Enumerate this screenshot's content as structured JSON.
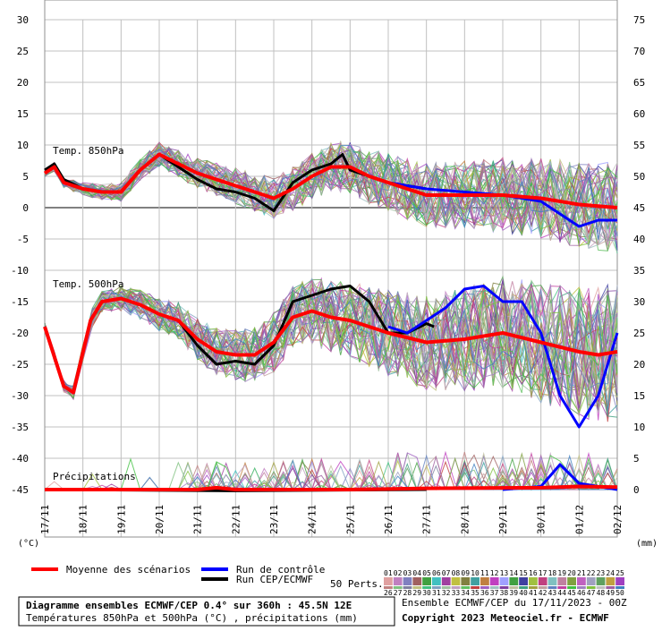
{
  "chart_data": {
    "type": "line",
    "left_unit_label": "(°C)",
    "right_unit_label": "(mm)",
    "x_categories": [
      "17/11",
      "18/11",
      "19/11",
      "20/11",
      "21/11",
      "22/11",
      "23/11",
      "24/11",
      "25/11",
      "26/11",
      "27/11",
      "28/11",
      "29/11",
      "30/11",
      "01/12",
      "02/12"
    ],
    "left_axis": {
      "range": [
        -45,
        30
      ],
      "ticks": [
        30,
        25,
        20,
        15,
        10,
        5,
        0,
        -5,
        -10,
        -15,
        -20,
        -25,
        -30,
        -35,
        -40,
        -45
      ]
    },
    "right_axis": {
      "range": [
        0,
        75
      ],
      "ticks": [
        75,
        70,
        65,
        60,
        55,
        50,
        45,
        40,
        35,
        30,
        25,
        20,
        15,
        10,
        5,
        0
      ]
    },
    "grid": true,
    "panels": [
      {
        "label": "Temp. 850hPa"
      },
      {
        "label": "Temp. 500hPa"
      },
      {
        "label": "Précipitations"
      }
    ],
    "series": [
      {
        "name": "Moyenne des scénarios",
        "color": "#ff0000",
        "panels": {
          "t850": [
            [
              0,
              5.5
            ],
            [
              0.25,
              6.5
            ],
            [
              0.5,
              4
            ],
            [
              1,
              3
            ],
            [
              1.5,
              2.5
            ],
            [
              2,
              2.5
            ],
            [
              2.5,
              6
            ],
            [
              3,
              8.5
            ],
            [
              3.5,
              7
            ],
            [
              4,
              5.5
            ],
            [
              4.5,
              4.5
            ],
            [
              5,
              3.5
            ],
            [
              5.5,
              2.5
            ],
            [
              6,
              1.5
            ],
            [
              6.5,
              3
            ],
            [
              7,
              5
            ],
            [
              7.5,
              6.5
            ],
            [
              8,
              6.5
            ],
            [
              8.5,
              5
            ],
            [
              9,
              4
            ],
            [
              9.5,
              3
            ],
            [
              10,
              2
            ],
            [
              11,
              2
            ],
            [
              12,
              2
            ],
            [
              13,
              1.5
            ],
            [
              14,
              0.5
            ],
            [
              15,
              0
            ]
          ],
          "t500": [
            [
              0,
              -19
            ],
            [
              0.5,
              -28.5
            ],
            [
              0.75,
              -29.5
            ],
            [
              1.2,
              -18
            ],
            [
              1.5,
              -15
            ],
            [
              2,
              -14.5
            ],
            [
              2.5,
              -15.5
            ],
            [
              3,
              -17
            ],
            [
              3.5,
              -18
            ],
            [
              4,
              -21
            ],
            [
              4.5,
              -23
            ],
            [
              5,
              -23.5
            ],
            [
              5.5,
              -23.5
            ],
            [
              6,
              -21.5
            ],
            [
              6.5,
              -17.5
            ],
            [
              7,
              -16.5
            ],
            [
              7.5,
              -17.5
            ],
            [
              8,
              -18
            ],
            [
              8.5,
              -19
            ],
            [
              9,
              -20
            ],
            [
              10,
              -21.5
            ],
            [
              11,
              -21
            ],
            [
              12,
              -20
            ],
            [
              13,
              -21.5
            ],
            [
              14,
              -23
            ],
            [
              14.5,
              -23.5
            ],
            [
              15,
              -23
            ]
          ],
          "precip": [
            [
              0,
              -45
            ],
            [
              4,
              -45
            ],
            [
              4.5,
              -44.7
            ],
            [
              5,
              -45
            ],
            [
              8,
              -45
            ],
            [
              10,
              -44.8
            ],
            [
              13,
              -44.7
            ],
            [
              14,
              -44.5
            ],
            [
              15,
              -44.6
            ]
          ]
        }
      },
      {
        "name": "Run de contrôle",
        "color": "#0000ff",
        "panels": {
          "t850": [
            [
              9,
              4
            ],
            [
              9.5,
              3.5
            ],
            [
              10,
              3
            ],
            [
              11,
              2.5
            ],
            [
              12,
              2
            ],
            [
              13,
              1
            ],
            [
              14,
              -3
            ],
            [
              14.5,
              -2
            ],
            [
              15,
              -2
            ]
          ],
          "t500": [
            [
              9,
              -19
            ],
            [
              9.5,
              -20
            ],
            [
              10,
              -18
            ],
            [
              10.5,
              -16
            ],
            [
              11,
              -13
            ],
            [
              11.5,
              -12.5
            ],
            [
              12,
              -15
            ],
            [
              12.5,
              -15
            ],
            [
              13,
              -20
            ],
            [
              13.5,
              -30
            ],
            [
              14,
              -35
            ],
            [
              14.5,
              -30
            ],
            [
              15,
              -20
            ]
          ],
          "precip": [
            [
              12,
              -45
            ],
            [
              13,
              -44.5
            ],
            [
              13.5,
              -41
            ],
            [
              14,
              -44
            ],
            [
              15,
              -45
            ]
          ]
        }
      },
      {
        "name": "Run CEP/ECMWF",
        "color": "#000000",
        "panels": {
          "t850": [
            [
              0,
              6
            ],
            [
              0.25,
              7
            ],
            [
              0.5,
              4.5
            ],
            [
              1,
              3
            ],
            [
              1.5,
              2.5
            ],
            [
              2,
              2.5
            ],
            [
              2.5,
              6
            ],
            [
              3,
              8.5
            ],
            [
              3.5,
              6.5
            ],
            [
              4,
              4.5
            ],
            [
              4.5,
              3
            ],
            [
              5,
              2.5
            ],
            [
              5.5,
              1.5
            ],
            [
              6,
              -0.5
            ],
            [
              6.5,
              4
            ],
            [
              7,
              6
            ],
            [
              7.5,
              7
            ],
            [
              7.8,
              8.5
            ],
            [
              8,
              6
            ],
            [
              8.5,
              5
            ],
            [
              9,
              4
            ],
            [
              9.5,
              3.5
            ],
            [
              10,
              3
            ]
          ],
          "t500": [
            [
              0,
              -19
            ],
            [
              0.5,
              -28.5
            ],
            [
              0.75,
              -29.5
            ],
            [
              1.2,
              -18
            ],
            [
              1.5,
              -15
            ],
            [
              2,
              -14.5
            ],
            [
              2.5,
              -15.5
            ],
            [
              3,
              -17
            ],
            [
              3.5,
              -18
            ],
            [
              4,
              -22
            ],
            [
              4.5,
              -25
            ],
            [
              5,
              -24.5
            ],
            [
              5.5,
              -25
            ],
            [
              6,
              -22
            ],
            [
              6.5,
              -15
            ],
            [
              7,
              -14
            ],
            [
              7.5,
              -13
            ],
            [
              8,
              -12.5
            ],
            [
              8.5,
              -15
            ],
            [
              9,
              -20
            ],
            [
              9.5,
              -20
            ],
            [
              10,
              -18.5
            ],
            [
              10.2,
              -19
            ]
          ],
          "precip": [
            [
              0,
              -45
            ],
            [
              5,
              -45.2
            ],
            [
              10,
              -45
            ]
          ]
        }
      }
    ]
  },
  "legend": {
    "mean": "Moyenne des scénarios",
    "control": "Run de contrôle",
    "cep": "Run CEP/ECMWF",
    "perts_label": "50 Perts.",
    "perts_row1": [
      "01",
      "02",
      "03",
      "04",
      "05",
      "06",
      "07",
      "08",
      "09",
      "10",
      "11",
      "12",
      "13",
      "14",
      "15",
      "16",
      "17",
      "18",
      "19",
      "20",
      "21",
      "22",
      "23",
      "24",
      "25"
    ],
    "perts_row2": [
      "26",
      "27",
      "28",
      "29",
      "30",
      "31",
      "32",
      "33",
      "34",
      "35",
      "36",
      "37",
      "38",
      "39",
      "40",
      "41",
      "42",
      "43",
      "44",
      "45",
      "46",
      "47",
      "48",
      "49",
      "50"
    ],
    "perts_colors1": [
      "#e0a0a0",
      "#c080c0",
      "#8080c0",
      "#a06060",
      "#40a040",
      "#40c0c0",
      "#a040a0",
      "#c0c040",
      "#808040",
      "#40a0a0",
      "#c08040",
      "#c040c0",
      "#a0a0ff",
      "#40a040",
      "#4040a0",
      "#a0c040",
      "#c04080",
      "#80c0c0",
      "#c080a0",
      "#80a040",
      "#c060c0",
      "#a0a0c0",
      "#60a060",
      "#c0a040",
      "#a040c0"
    ],
    "perts_colors2": [
      "#c08080",
      "#80c080",
      "#8080a0",
      "#c0c080",
      "#40c080",
      "#80a0c0",
      "#a0c0a0",
      "#c0a0c0",
      "#60c060",
      "#c04040",
      "#a060c0",
      "#a0c0c0",
      "#8040a0",
      "#c0c0a0",
      "#40a080",
      "#a0a040",
      "#c0a0a0",
      "#6080c0",
      "#c040a0",
      "#40c040",
      "#a080c0",
      "#80c040",
      "#c0c0c0",
      "#a060a0",
      "#4080c0"
    ]
  },
  "footer": {
    "title_line": "Diagramme ensembles ECMWF/CEP 0.4° sur 360h : 45.5N 12E",
    "subtitle_line": "Températures 850hPa et 500hPa (°C) , précipitations (mm)",
    "run_line": "Ensemble ECMWF/CEP du 17/11/2023 - 00Z",
    "copyright": "Copyright 2023 Meteociel.fr - ECMWF"
  }
}
